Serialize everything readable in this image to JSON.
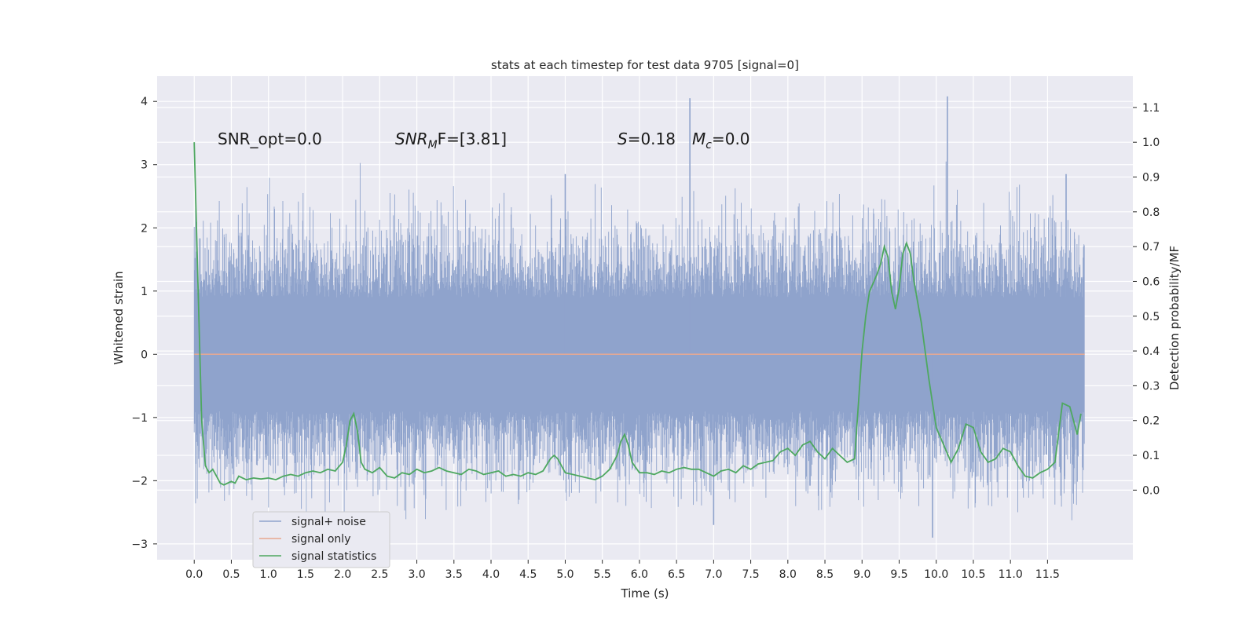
{
  "chart_data": {
    "type": "line",
    "title": "stats at each timestep for test data 9705 [signal=0]",
    "xlabel": "Time (s)",
    "ylabel": "Whitened strain",
    "ylabel_right": "Detection probability/MF",
    "xlim": [
      -0.5,
      12.65
    ],
    "ylim": [
      -3.25,
      4.4
    ],
    "ylim_right": [
      -0.2,
      1.19
    ],
    "x_ticks": [
      "0.0",
      "0.5",
      "1.0",
      "1.5",
      "2.0",
      "2.5",
      "3.0",
      "3.5",
      "4.0",
      "4.5",
      "5.0",
      "5.5",
      "6.0",
      "6.5",
      "7.0",
      "7.5",
      "8.0",
      "8.5",
      "9.0",
      "9.5",
      "10.0",
      "10.5",
      "11.0",
      "11.5"
    ],
    "y_ticks": [
      "−3",
      "−2",
      "−1",
      "0",
      "1",
      "2",
      "3",
      "4"
    ],
    "y_ticks_right": [
      "0.0",
      "0.1",
      "0.2",
      "0.3",
      "0.4",
      "0.5",
      "0.6",
      "0.7",
      "0.8",
      "0.9",
      "1.0",
      "1.1"
    ],
    "grid": true,
    "legend_position": "lower-left",
    "annotations": {
      "snr_opt": "SNR_opt=0.0",
      "snr_mf_main": "SNR",
      "snr_mf_sub": "M",
      "snr_mf_rest": "F=[3.81]",
      "s_label": "S",
      "s_rest": "=0.18",
      "mc_main": "M",
      "mc_sub": "c",
      "mc_rest": "=0.0"
    },
    "series": [
      {
        "name": "signal+ noise",
        "color": "#8fa3cc",
        "axis": "left",
        "note_range": [
          -2.9,
          4.1
        ],
        "x_extent": [
          0.0,
          12.0
        ],
        "spikes": [
          {
            "x": 6.68,
            "y": 4.05
          },
          {
            "x": 10.15,
            "y": 4.08
          },
          {
            "x": 9.95,
            "y": -2.9
          },
          {
            "x": 7.0,
            "y": -2.7
          },
          {
            "x": 5.0,
            "y": 2.85
          },
          {
            "x": 11.75,
            "y": 2.85
          }
        ]
      },
      {
        "name": "signal only",
        "color": "#e8a890",
        "axis": "left",
        "x": [
          0.0,
          12.0
        ],
        "y": [
          0.0,
          0.0
        ]
      },
      {
        "name": "signal statistics",
        "color": "#4ea860",
        "axis": "right",
        "x": [
          0.0,
          0.05,
          0.1,
          0.15,
          0.2,
          0.25,
          0.3,
          0.35,
          0.4,
          0.45,
          0.5,
          0.55,
          0.6,
          0.7,
          0.8,
          0.9,
          1.0,
          1.1,
          1.2,
          1.3,
          1.4,
          1.5,
          1.6,
          1.7,
          1.8,
          1.9,
          2.0,
          2.05,
          2.1,
          2.15,
          2.2,
          2.25,
          2.3,
          2.4,
          2.5,
          2.6,
          2.7,
          2.8,
          2.9,
          3.0,
          3.1,
          3.2,
          3.3,
          3.4,
          3.5,
          3.6,
          3.7,
          3.8,
          3.9,
          4.0,
          4.1,
          4.2,
          4.3,
          4.4,
          4.5,
          4.6,
          4.7,
          4.8,
          4.85,
          4.9,
          4.95,
          5.0,
          5.1,
          5.2,
          5.3,
          5.4,
          5.5,
          5.6,
          5.7,
          5.75,
          5.8,
          5.85,
          5.9,
          6.0,
          6.1,
          6.2,
          6.3,
          6.4,
          6.5,
          6.6,
          6.7,
          6.8,
          6.9,
          7.0,
          7.1,
          7.2,
          7.3,
          7.4,
          7.5,
          7.6,
          7.7,
          7.8,
          7.9,
          8.0,
          8.1,
          8.2,
          8.3,
          8.4,
          8.5,
          8.6,
          8.7,
          8.8,
          8.9,
          9.0,
          9.05,
          9.1,
          9.2,
          9.25,
          9.3,
          9.35,
          9.4,
          9.45,
          9.5,
          9.55,
          9.6,
          9.65,
          9.7,
          9.8,
          9.9,
          10.0,
          10.1,
          10.2,
          10.3,
          10.4,
          10.5,
          10.6,
          10.7,
          10.8,
          10.9,
          11.0,
          11.1,
          11.2,
          11.3,
          11.4,
          11.5,
          11.6,
          11.7,
          11.8,
          11.9,
          11.95
        ],
        "y": [
          1.0,
          0.6,
          0.2,
          0.07,
          0.05,
          0.06,
          0.04,
          0.02,
          0.015,
          0.02,
          0.025,
          0.02,
          0.04,
          0.03,
          0.035,
          0.032,
          0.035,
          0.03,
          0.04,
          0.045,
          0.04,
          0.05,
          0.055,
          0.05,
          0.06,
          0.055,
          0.08,
          0.13,
          0.2,
          0.22,
          0.17,
          0.08,
          0.06,
          0.05,
          0.065,
          0.04,
          0.035,
          0.05,
          0.045,
          0.06,
          0.05,
          0.055,
          0.065,
          0.055,
          0.05,
          0.045,
          0.06,
          0.055,
          0.045,
          0.05,
          0.055,
          0.04,
          0.045,
          0.04,
          0.05,
          0.045,
          0.055,
          0.09,
          0.1,
          0.09,
          0.07,
          0.05,
          0.045,
          0.04,
          0.035,
          0.03,
          0.04,
          0.06,
          0.1,
          0.14,
          0.16,
          0.13,
          0.08,
          0.05,
          0.05,
          0.045,
          0.055,
          0.05,
          0.06,
          0.065,
          0.06,
          0.06,
          0.05,
          0.04,
          0.055,
          0.06,
          0.05,
          0.07,
          0.06,
          0.075,
          0.08,
          0.085,
          0.11,
          0.12,
          0.1,
          0.13,
          0.14,
          0.11,
          0.09,
          0.12,
          0.1,
          0.08,
          0.09,
          0.4,
          0.5,
          0.57,
          0.62,
          0.65,
          0.7,
          0.67,
          0.57,
          0.52,
          0.58,
          0.68,
          0.71,
          0.68,
          0.6,
          0.48,
          0.32,
          0.18,
          0.13,
          0.08,
          0.12,
          0.19,
          0.18,
          0.11,
          0.08,
          0.09,
          0.12,
          0.11,
          0.07,
          0.04,
          0.035,
          0.05,
          0.06,
          0.08,
          0.25,
          0.24,
          0.16,
          0.22
        ]
      }
    ]
  }
}
